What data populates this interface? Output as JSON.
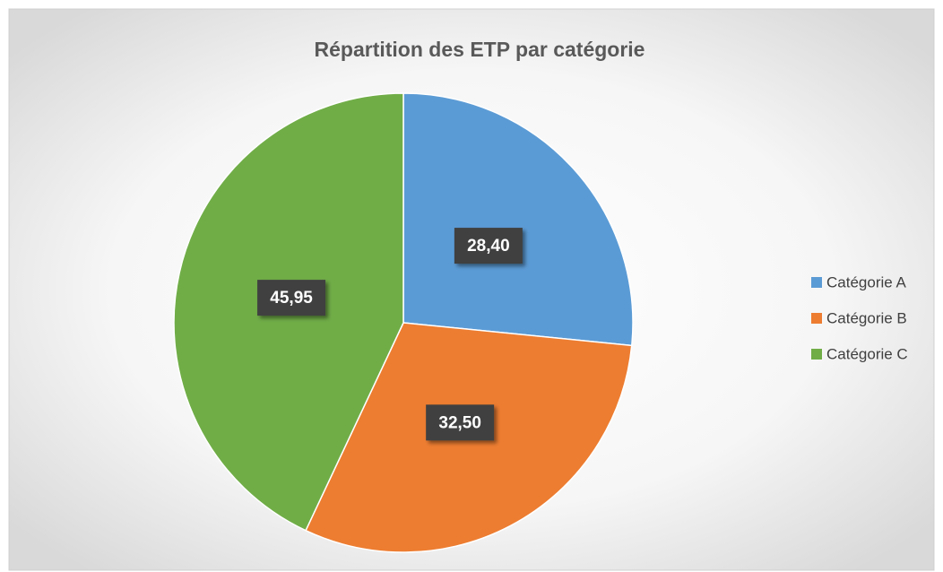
{
  "chart_data": {
    "type": "pie",
    "title": "Répartition des ETP par catégorie",
    "categories": [
      "Catégorie A",
      "Catégorie B",
      "Catégorie C"
    ],
    "values": [
      28.4,
      32.5,
      45.95
    ],
    "value_labels": [
      "28,40",
      "32,50",
      "45,95"
    ],
    "colors": [
      "#5b9bd5",
      "#ed7d31",
      "#70ad47"
    ],
    "legend": "right"
  }
}
